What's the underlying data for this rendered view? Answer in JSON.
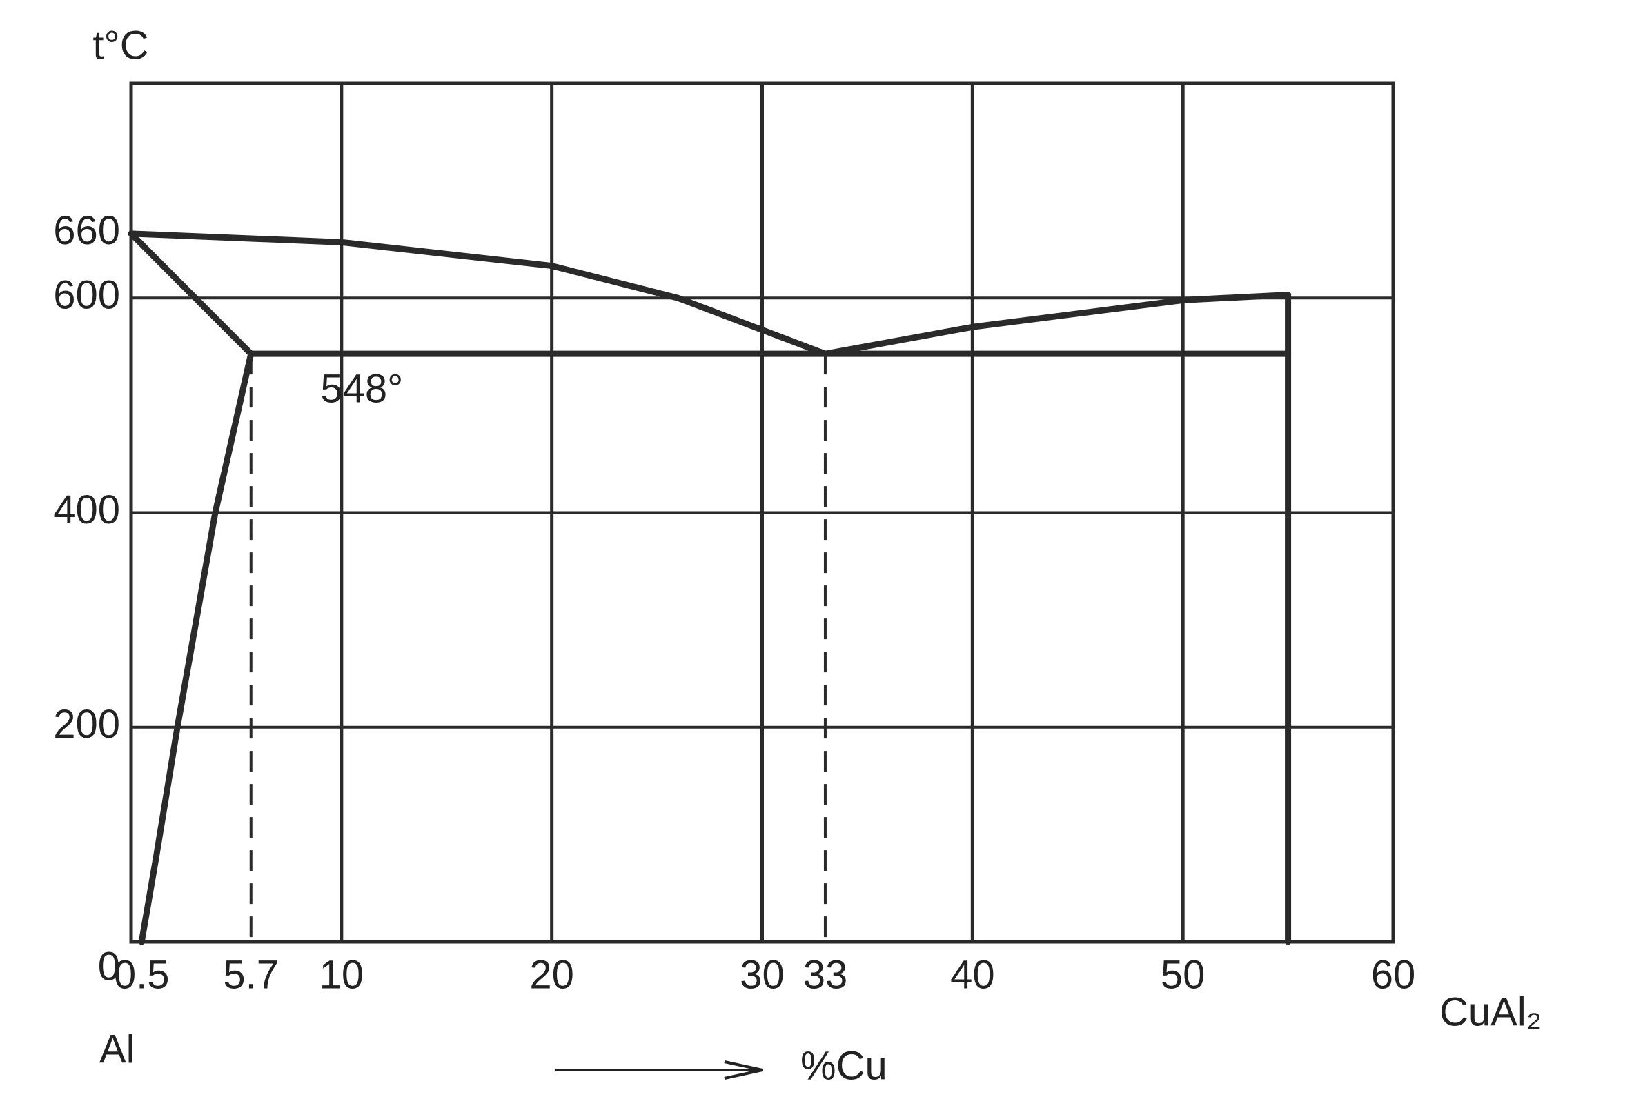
{
  "chart_data": {
    "type": "line",
    "title": "t°C",
    "xlabel": "%Cu",
    "left_label": "Al",
    "right_label": "CuAl₂",
    "annotations": [
      {
        "text": "548°",
        "x": 9,
        "y": 548
      }
    ],
    "xlim": [
      0,
      60
    ],
    "ylim": [
      0,
      800
    ],
    "xticks": [
      0.5,
      5.7,
      10,
      20,
      30,
      33,
      40,
      50,
      60
    ],
    "yticks": [
      0,
      200,
      400,
      600,
      660
    ],
    "x_gridlines": [
      10,
      20,
      30,
      40,
      50
    ],
    "y_gridlines": [
      200,
      400,
      600
    ],
    "dashed_guides": [
      {
        "x": 5.7,
        "y": 548
      },
      {
        "x": 33,
        "y": 548
      }
    ],
    "series": [
      {
        "color": "#2a2a2a",
        "x": [
          0,
          10,
          20,
          26,
          33
        ],
        "values": [
          660,
          652,
          630,
          600,
          548
        ]
      },
      {
        "color": "#2a2a2a",
        "x": [
          33,
          40,
          50,
          55
        ],
        "values": [
          548,
          573,
          598,
          603
        ]
      },
      {
        "color": "#2a2a2a",
        "x": [
          0,
          5.7
        ],
        "values": [
          660,
          548
        ]
      },
      {
        "color": "#2a2a2a",
        "x": [
          5.7,
          4,
          2.2,
          1.2,
          0.5
        ],
        "values": [
          548,
          400,
          200,
          80,
          0
        ]
      },
      {
        "color": "#2a2a2a",
        "x": [
          5.7,
          55
        ],
        "values": [
          548,
          548
        ]
      },
      {
        "color": "#2a2a2a",
        "x": [
          55,
          55
        ],
        "values": [
          603,
          0
        ]
      }
    ]
  }
}
